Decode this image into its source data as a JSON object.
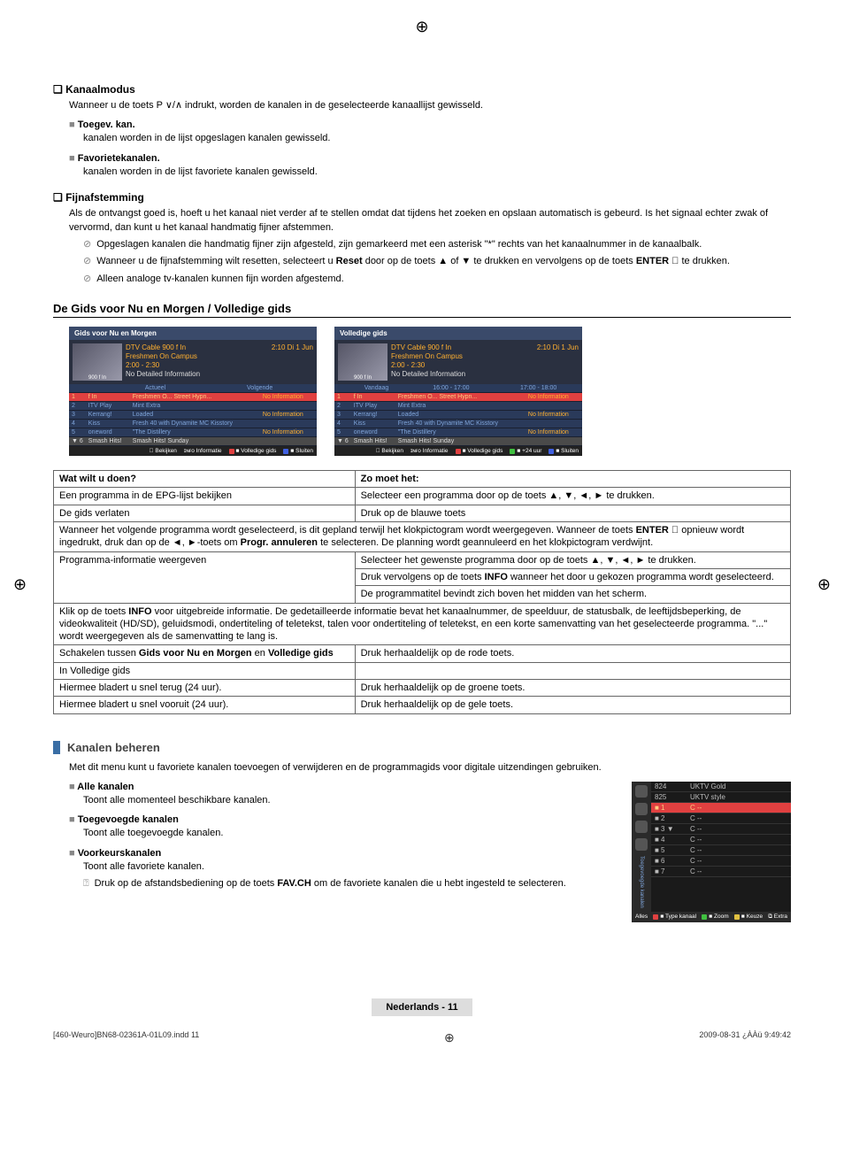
{
  "kanaal": {
    "title": "Kanaalmodus",
    "intro": "Wanneer u de toets P ∨/∧ indrukt, worden de kanalen in de geselecteerde kanaallijst gewisseld.",
    "toegev_title": "Toegev. kan.",
    "toegev_body": "kanalen worden in de lijst opgeslagen kanalen gewisseld.",
    "fav_title": "Favorietekanalen.",
    "fav_body": "kanalen worden in de lijst favoriete kanalen gewisseld."
  },
  "fijn": {
    "title": "Fijnafstemming",
    "body": "Als de ontvangst goed is, hoeft u het kanaal niet verder af te stellen omdat dat tijdens het zoeken en opslaan automatisch is gebeurd. Is het signaal echter zwak of vervormd, dan kunt u het kanaal handmatig fijner afstemmen.",
    "n1": "Opgeslagen kanalen die handmatig fijner zijn afgesteld, zijn gemarkeerd met een asterisk \"*\" rechts van het kanaalnummer in de kanaalbalk.",
    "n2": "Wanneer u de fijnafstemming wilt resetten, selecteert u Reset door op de toets ▲ of ▼ te drukken en vervolgens op de toets ENTER 󰿄 te drukken.",
    "n3": "Alleen analoge tv-kanalen kunnen fijn worden afgestemd."
  },
  "gids": {
    "heading": "De Gids voor Nu en Morgen / Volledige gids",
    "panel1_title": "Gids voor Nu en Morgen",
    "panel2_title": "Volledige gids",
    "dt": "DTV Cable 900 f In",
    "prog": "Freshmen On Campus",
    "tm": "2:00 - 2:30",
    "ni": "No Detailed Information",
    "tr": "2:10  Di 1 Jun",
    "col_a": "Actueel",
    "col_v": "Volgende",
    "col_vd": "Vandaag",
    "col_t1": "16:00 - 17:00",
    "col_t2": "17:00 - 18:00",
    "rows": [
      {
        "n": "1",
        "na": "f In",
        "c1": "Freshmen O...",
        "c2": "Street Hypn...",
        "c3": "No Information"
      },
      {
        "n": "2",
        "na": "ITV Play",
        "c1": "Mint Extra",
        "c2": "",
        "c3": ""
      },
      {
        "n": "3",
        "na": "Kerrang!",
        "c1": "Loaded",
        "c2": "",
        "c3": "No Information"
      },
      {
        "n": "4",
        "na": "Kiss",
        "c1": "Fresh 40 with Dynamite MC",
        "c2": "Kisstory",
        "c3": ""
      },
      {
        "n": "5",
        "na": "oneword",
        "c1": "\"The Distillery",
        "c2": "",
        "c3": "No Information"
      },
      {
        "n": "▼ 6",
        "na": "Smash Hits!",
        "c1": "Smash Hits! Sunday",
        "c2": "",
        "c3": ""
      }
    ],
    "f_bekijken": "󰿄 Bekijken",
    "f_info": "ɪɴғᴏ Informatie",
    "f_voll": "■ Volledige gids",
    "f_24": "■ +24 uur",
    "f_sluit": "■ Sluiten"
  },
  "table": {
    "h1": "Wat wilt u doen?",
    "h2": "Zo moet het:",
    "r1a": "Een programma in de EPG-lijst bekijken",
    "r1b": "Selecteer een programma door op de toets ▲, ▼, ◄, ► te drukken.",
    "r2a": "De gids verlaten",
    "r2b": "Druk op de blauwe toets",
    "r3": "Wanneer het volgende programma wordt geselecteerd, is dit gepland terwijl het klokpictogram wordt weergegeven. Wanneer de toets ENTER 󰿄 opnieuw wordt ingedrukt, druk dan op de ◄, ►-toets om Progr. annuleren te selecteren. De planning wordt geannuleerd en het klokpictogram verdwijnt.",
    "r4a": "Programma-informatie weergeven",
    "r4b1": "Selecteer het gewenste programma door op de toets ▲, ▼, ◄, ► te drukken.",
    "r4b2": "Druk vervolgens op de toets INFO wanneer het door u gekozen programma wordt geselecteerd.",
    "r4b3": "De programmatitel bevindt zich boven het midden van het scherm.",
    "r5": "Klik op de toets INFO voor uitgebreide informatie. De gedetailleerde informatie bevat het kanaalnummer, de speelduur, de statusbalk, de leeftijdsbeperking, de videokwaliteit (HD/SD), geluidsmodi, ondertiteling of teletekst, talen voor ondertiteling of teletekst, en een korte samenvatting van het geselecteerde programma. \"...\" wordt weergegeven als de samenvatting te lang is.",
    "r6a": "Schakelen tussen Gids voor Nu en Morgen en Volledige gids",
    "r6b": "Druk herhaaldelijk op de rode toets.",
    "r7a": "In Volledige gids",
    "r8a": "Hiermee bladert u snel terug (24 uur).",
    "r8b": "Druk herhaaldelijk op de groene toets.",
    "r9a": "Hiermee bladert u snel vooruit (24 uur).",
    "r9b": "Druk herhaaldelijk op de gele toets."
  },
  "beheren": {
    "title": "Kanalen beheren",
    "intro": "Met dit menu kunt u favoriete kanalen toevoegen of verwijderen en de programmagids voor digitale uitzendingen gebruiken.",
    "alle_t": "Alle kanalen",
    "alle_b": "Toont alle momenteel beschikbare kanalen.",
    "toeg_t": "Toegevoegde kanalen",
    "toeg_b": "Toont alle toegevoegde kanalen.",
    "voor_t": "Voorkeurskanalen",
    "voor_b": "Toont alle favoriete kanalen.",
    "voor_n": "Druk op de afstandsbediening op de toets FAV.CH om de favoriete kanalen die u hebt ingesteld te selecteren."
  },
  "cp": {
    "rows": [
      {
        "n": "824",
        "na": "UKTV Gold"
      },
      {
        "n": "825",
        "na": "UKTV style"
      },
      {
        "n": "■ 1",
        "na": "C --",
        "sel": true
      },
      {
        "n": "■ 2",
        "na": "C --"
      },
      {
        "n": "■ 3  ▼",
        "na": "C --"
      },
      {
        "n": "■ 4",
        "na": "C --"
      },
      {
        "n": "■ 5",
        "na": "C --"
      },
      {
        "n": "■ 6",
        "na": "C --"
      },
      {
        "n": "■ 7",
        "na": "C --"
      }
    ],
    "tab_side": "Toegevoegde kanalen",
    "f1": "Alles",
    "f2": "■ Type kanaal",
    "f3": "■ Zoom",
    "f4": "■ Keuze",
    "f5": "⧉ Extra"
  },
  "footer": {
    "page": "Nederlands - 11",
    "bl": "[460-Weuro]BN68-02361A-01L09.indd   11",
    "br": "2009-08-31   ¿ÀÀü 9:49:42"
  }
}
